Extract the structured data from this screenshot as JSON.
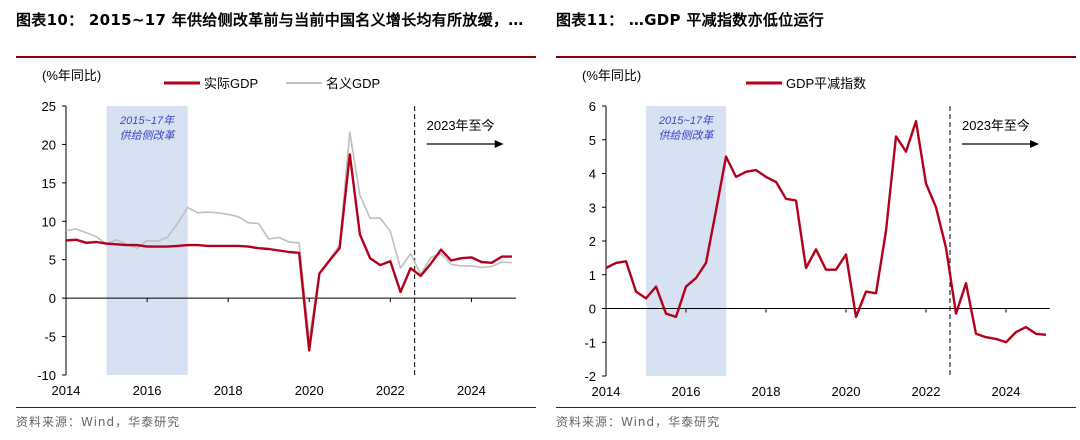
{
  "colors": {
    "accent": "#b3001b",
    "nominal": "#bfbfbf",
    "shade": "#d6e1f2",
    "shade_text": "#3a44c8"
  },
  "left": {
    "title": "图表10： 2015~17 年供给侧改革前与当前中国名义增长均有所放缓，…",
    "source": "资料来源：Wind，华泰研究"
  },
  "right": {
    "title": "图表11： …GDP 平减指数亦低位运行",
    "source": "资料来源：Wind，华泰研究"
  },
  "chart_data": [
    {
      "type": "line",
      "ylabel": "(%年同比)",
      "ylim": [
        -10,
        25
      ],
      "yticks": [
        -10,
        -5,
        0,
        5,
        10,
        15,
        20,
        25
      ],
      "xlim": [
        2014,
        2025.1
      ],
      "xticks": [
        2014,
        2016,
        2018,
        2020,
        2022,
        2024
      ],
      "grid": false,
      "legend": "top-center",
      "shade": {
        "from": 2015,
        "to": 2017,
        "label_line1": "2015~17年",
        "label_line2": "供给侧改革"
      },
      "marker": {
        "x": 2022.6,
        "label": "2023年至今"
      },
      "series": [
        {
          "name": "实际GDP",
          "x": [
            2014.0,
            2014.25,
            2014.5,
            2014.75,
            2015.0,
            2015.25,
            2015.5,
            2015.75,
            2016.0,
            2016.25,
            2016.5,
            2016.75,
            2017.0,
            2017.25,
            2017.5,
            2017.75,
            2018.0,
            2018.25,
            2018.5,
            2018.75,
            2019.0,
            2019.25,
            2019.5,
            2019.75,
            2020.0,
            2020.25,
            2020.5,
            2020.75,
            2021.0,
            2021.25,
            2021.5,
            2021.75,
            2022.0,
            2022.25,
            2022.5,
            2022.75,
            2023.0,
            2023.25,
            2023.5,
            2023.75,
            2024.0,
            2024.25,
            2024.5,
            2024.75,
            2025.0
          ],
          "values": [
            7.5,
            7.6,
            7.2,
            7.3,
            7.1,
            7.0,
            6.9,
            6.9,
            6.7,
            6.7,
            6.7,
            6.8,
            6.9,
            6.9,
            6.8,
            6.8,
            6.8,
            6.8,
            6.7,
            6.5,
            6.4,
            6.2,
            6.0,
            5.9,
            -6.8,
            3.2,
            4.9,
            6.5,
            18.7,
            8.3,
            5.2,
            4.3,
            4.8,
            0.8,
            3.9,
            2.9,
            4.5,
            6.3,
            4.9,
            5.2,
            5.3,
            4.7,
            4.6,
            5.4,
            5.4
          ]
        },
        {
          "name": "名义GDP",
          "x": [
            2014.0,
            2014.25,
            2014.5,
            2014.75,
            2015.0,
            2015.25,
            2015.5,
            2015.75,
            2016.0,
            2016.25,
            2016.5,
            2016.75,
            2017.0,
            2017.25,
            2017.5,
            2017.75,
            2018.0,
            2018.25,
            2018.5,
            2018.75,
            2019.0,
            2019.25,
            2019.5,
            2019.75,
            2020.0,
            2020.25,
            2020.5,
            2020.75,
            2021.0,
            2021.25,
            2021.5,
            2021.75,
            2022.0,
            2022.25,
            2022.5,
            2022.75,
            2023.0,
            2023.25,
            2023.5,
            2023.75,
            2024.0,
            2024.25,
            2024.5,
            2024.75,
            2025.0
          ],
          "values": [
            8.8,
            9.0,
            8.5,
            8.0,
            7.0,
            7.6,
            7.0,
            6.5,
            7.5,
            7.4,
            7.9,
            9.7,
            11.8,
            11.1,
            11.2,
            11.1,
            10.9,
            10.6,
            9.8,
            9.7,
            7.7,
            7.9,
            7.3,
            7.2,
            -5.3,
            3.2,
            5.0,
            6.9,
            21.6,
            13.4,
            10.4,
            10.4,
            8.7,
            3.9,
            5.8,
            3.1,
            5.3,
            5.8,
            4.4,
            4.2,
            4.2,
            4.0,
            4.1,
            4.7,
            4.6
          ]
        }
      ]
    },
    {
      "type": "line",
      "ylabel": "(%年同比)",
      "ylim": [
        -2,
        6
      ],
      "yticks": [
        -2,
        -1,
        0,
        1,
        2,
        3,
        4,
        5,
        6
      ],
      "xlim": [
        2014,
        2025.1
      ],
      "xticks": [
        2014,
        2016,
        2018,
        2020,
        2022,
        2024
      ],
      "grid": false,
      "legend": "top-center",
      "shade": {
        "from": 2015,
        "to": 2017,
        "label_line1": "2015~17年",
        "label_line2": "供给侧改革"
      },
      "marker": {
        "x": 2022.6,
        "label": "2023年至今"
      },
      "series": [
        {
          "name": "GDP平减指数",
          "x": [
            2014.0,
            2014.25,
            2014.5,
            2014.75,
            2015.0,
            2015.25,
            2015.5,
            2015.75,
            2016.0,
            2016.25,
            2016.5,
            2016.75,
            2017.0,
            2017.25,
            2017.5,
            2017.75,
            2018.0,
            2018.25,
            2018.5,
            2018.75,
            2019.0,
            2019.25,
            2019.5,
            2019.75,
            2020.0,
            2020.25,
            2020.5,
            2020.75,
            2021.0,
            2021.25,
            2021.5,
            2021.75,
            2022.0,
            2022.25,
            2022.5,
            2022.75,
            2023.0,
            2023.25,
            2023.5,
            2023.75,
            2024.0,
            2024.25,
            2024.5,
            2024.75,
            2025.0
          ],
          "values": [
            1.2,
            1.35,
            1.4,
            0.5,
            0.3,
            0.65,
            -0.15,
            -0.25,
            0.65,
            0.9,
            1.35,
            2.9,
            4.5,
            3.9,
            4.05,
            4.1,
            3.9,
            3.75,
            3.25,
            3.2,
            1.2,
            1.75,
            1.15,
            1.15,
            1.6,
            -0.25,
            0.5,
            0.45,
            2.3,
            5.1,
            4.65,
            5.55,
            3.7,
            3.0,
            1.8,
            -0.15,
            0.75,
            -0.75,
            -0.85,
            -0.9,
            -1.0,
            -0.7,
            -0.55,
            -0.75,
            -0.78
          ]
        }
      ]
    }
  ]
}
